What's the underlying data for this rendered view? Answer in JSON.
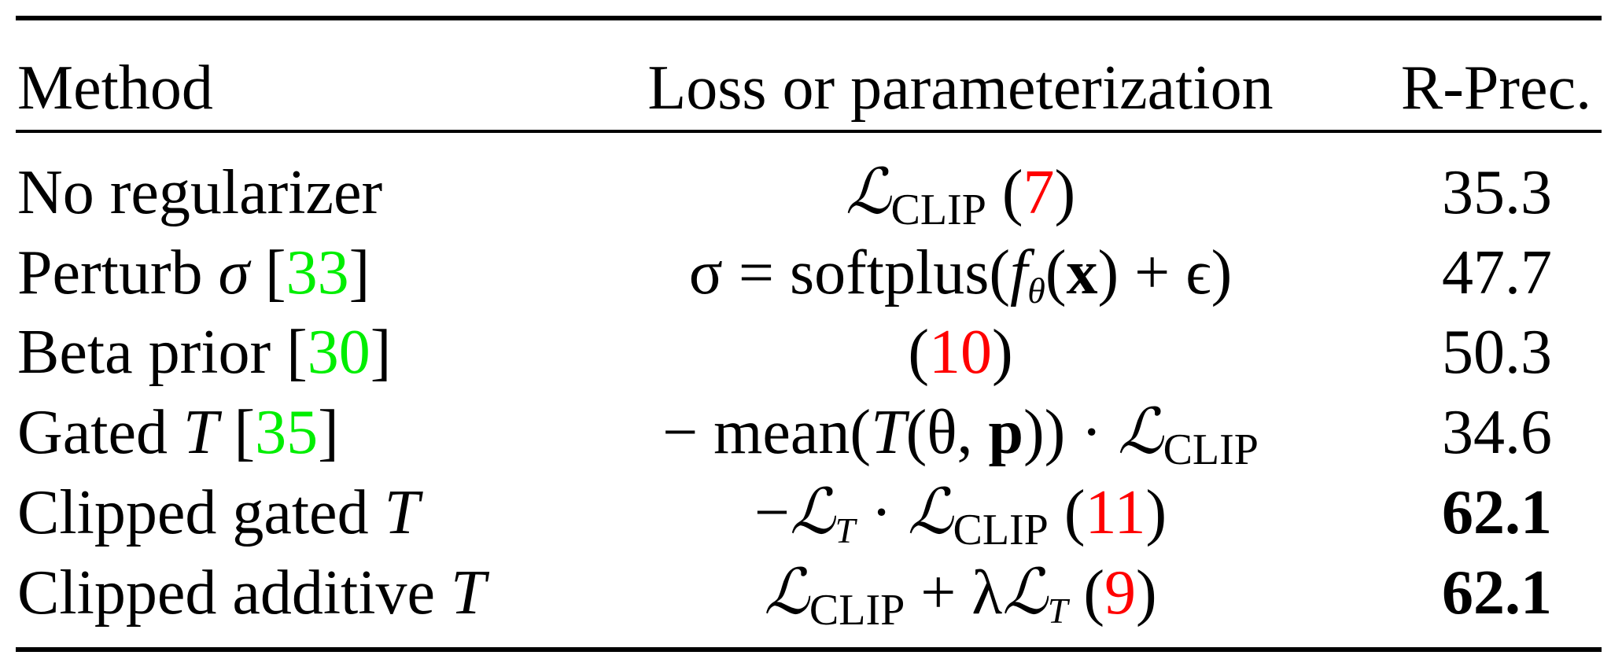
{
  "headers": {
    "method": "Method",
    "loss": "Loss or parameterization",
    "rprec": "R-Prec."
  },
  "colors": {
    "equation_ref": "#ff0000",
    "citation": "#00ee00"
  },
  "rows": [
    {
      "method": "No regularizer",
      "loss": {
        "L": "ℒ",
        "sub": "CLIP",
        "ref": "7"
      },
      "rprec": "35.3",
      "bold": false
    },
    {
      "method": "Perturb",
      "method_sym": "σ",
      "cite": "33",
      "loss": {
        "text1": "σ = softplus(",
        "f": "f",
        "fsub": "θ",
        "text2": "(",
        "x": "x",
        "text3": ") + ϵ)"
      },
      "rprec": "47.7",
      "bold": false
    },
    {
      "method": "Beta prior",
      "cite": "30",
      "loss": {
        "ref": "10"
      },
      "rprec": "50.3",
      "bold": false
    },
    {
      "method": "Gated",
      "method_sym": "T",
      "cite": "35",
      "loss": {
        "text1": "− mean(",
        "T": "T",
        "text2": "(θ, ",
        "p": "p",
        "text3": ")) · ",
        "L": "ℒ",
        "sub": "CLIP"
      },
      "rprec": "34.6",
      "bold": false
    },
    {
      "method": "Clipped gated",
      "method_sym": "T",
      "loss": {
        "text1": "−",
        "L": "ℒ",
        "sub1": "T",
        "dot": " · ",
        "sub": "CLIP",
        "ref": "11"
      },
      "rprec": "62.1",
      "bold": true
    },
    {
      "method": "Clipped additive",
      "method_sym": "T",
      "loss": {
        "L": "ℒ",
        "sub": "CLIP",
        "plus": " + λ",
        "sub1": "T",
        "ref": "9"
      },
      "rprec": "62.1",
      "bold": true
    }
  ]
}
